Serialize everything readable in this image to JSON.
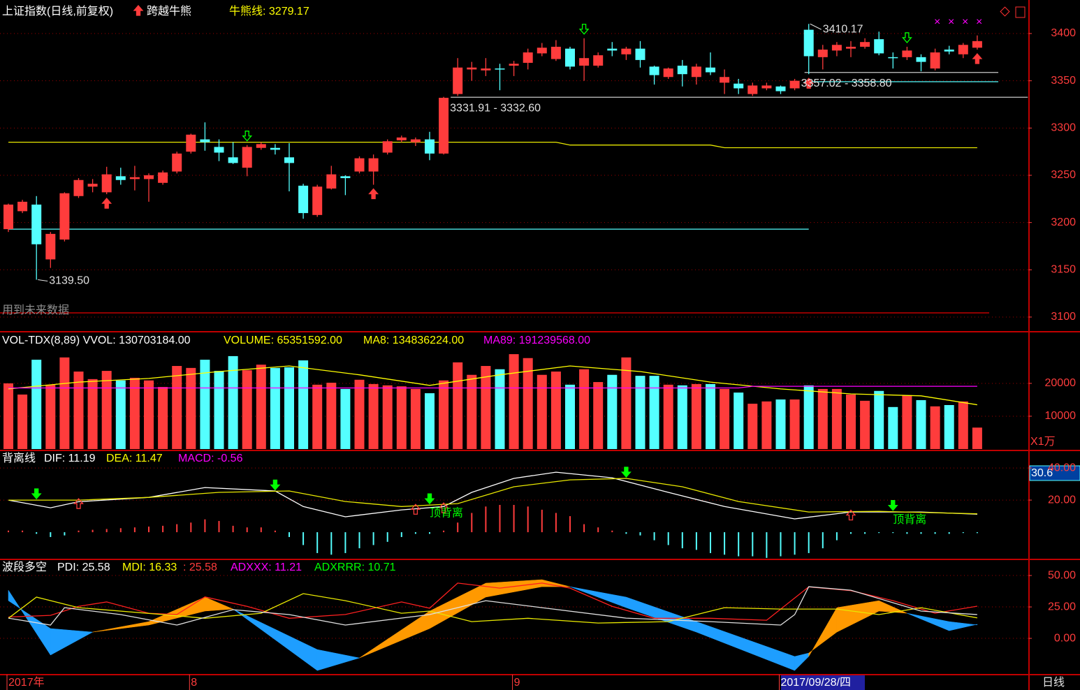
{
  "chart_data": [
    {
      "type": "candlestick",
      "legend": [
        {
          "label": "上证指数(日线,前复权)",
          "color": "#ffffff"
        },
        {
          "label": "跨越牛熊",
          "color": "#ffffff"
        },
        {
          "label": "牛熊线: 3279.17",
          "color": "#ffff00"
        }
      ],
      "footnote": "用到未来数据",
      "categories": [
        "2017年",
        null,
        null,
        null,
        null,
        null,
        null,
        null,
        null,
        null,
        null,
        null,
        null,
        "8",
        null,
        null,
        null,
        null,
        null,
        null,
        null,
        null,
        null,
        null,
        null,
        null,
        null,
        null,
        null,
        null,
        null,
        null,
        null,
        null,
        null,
        null,
        "9",
        null,
        null,
        null,
        null,
        null,
        null,
        null,
        null,
        null,
        null,
        null,
        null,
        null,
        null,
        null,
        null,
        null,
        null,
        "2017/09/28/四",
        null,
        null,
        null,
        null,
        null,
        null,
        null,
        null,
        null,
        null,
        null,
        null,
        null,
        null
      ],
      "open": [
        3193,
        3212,
        3219,
        3161,
        3182,
        3228,
        3238,
        3232,
        3249,
        3246,
        3246,
        3242,
        3254,
        3275,
        3288,
        3280,
        3269,
        3258,
        3279,
        3279,
        3269,
        3239,
        3208,
        3236,
        3249,
        3254,
        3254,
        3274,
        3287,
        3285,
        3288,
        3273,
        3336,
        3362,
        3361,
        3363,
        3366,
        3369,
        3379,
        3373,
        3384,
        3366,
        3366,
        3384,
        3378,
        3384,
        3365,
        3354,
        3366,
        3354,
        3364,
        3348,
        3347,
        3336,
        3342,
        3344,
        3342,
        3404,
        3375,
        3382,
        3384,
        3386,
        3394,
        3375,
        3375,
        3375,
        3363,
        3383,
        3378,
        3385
      ],
      "high": [
        3220,
        3224,
        3228,
        3190,
        3232,
        3247,
        3246,
        3259,
        3258,
        3260,
        3252,
        3255,
        3275,
        3294,
        3306,
        3288,
        3285,
        3282,
        3285,
        3283,
        3284,
        3241,
        3240,
        3260,
        3250,
        3270,
        3272,
        3288,
        3292,
        3290,
        3296,
        3333,
        3374,
        3370,
        3374,
        3368,
        3371,
        3384,
        3390,
        3393,
        3386,
        3395,
        3380,
        3391,
        3386,
        3392,
        3366,
        3364,
        3372,
        3368,
        3380,
        3362,
        3352,
        3348,
        3348,
        3345,
        3352,
        3410.17,
        3388,
        3391,
        3392,
        3395,
        3402,
        3380,
        3386,
        3378,
        3384,
        3387,
        3390,
        3398
      ],
      "low": [
        3190,
        3210,
        3139.5,
        3152,
        3180,
        3226,
        3232,
        3230,
        3240,
        3234,
        3222,
        3240,
        3252,
        3273,
        3276,
        3265,
        3262,
        3249,
        3277,
        3272,
        3233,
        3204,
        3206,
        3235,
        3229,
        3252,
        3240,
        3272,
        3285,
        3281,
        3266,
        3272,
        3334,
        3350,
        3355,
        3340,
        3355,
        3362,
        3376,
        3371,
        3362,
        3350,
        3364,
        3376,
        3372,
        3364,
        3346,
        3352,
        3344,
        3346,
        3356,
        3336,
        3336,
        3334,
        3340,
        3336,
        3340,
        3357,
        3362,
        3376,
        3375,
        3384,
        3377,
        3363,
        3372,
        3360,
        3361,
        3378,
        3374,
        3383
      ],
      "close": [
        3219,
        3222,
        3177,
        3188,
        3231,
        3245,
        3241,
        3251,
        3245,
        3248,
        3250,
        3253,
        3273,
        3293,
        3285,
        3274,
        3263,
        3280,
        3283,
        3277,
        3263,
        3210,
        3238,
        3251,
        3247,
        3268,
        3268,
        3286,
        3290,
        3288,
        3273,
        3332,
        3364,
        3364,
        3363,
        3362,
        3368,
        3380,
        3385,
        3386,
        3365,
        3374,
        3377,
        3382,
        3384,
        3372,
        3356,
        3363,
        3357,
        3365,
        3359,
        3354,
        3342,
        3345,
        3345,
        3339,
        3350,
        3376,
        3383,
        3388,
        3386,
        3391,
        3379,
        3374,
        3382,
        3370,
        3380,
        3381,
        3388,
        3392
      ],
      "up_color": "#ff3c3c",
      "down_color": "#54ffff",
      "ylim": [
        3085.2,
        3434
      ],
      "yticks": [
        3100,
        3150,
        3200,
        3250,
        3300,
        3350,
        3400
      ],
      "grid": true,
      "series": [
        {
          "color": "#e8e800",
          "x": [
            0,
            39,
            40,
            50,
            51,
            69
          ],
          "values": [
            3285,
            3285,
            3282,
            3282,
            3279.17,
            3279.17
          ]
        }
      ],
      "levels": [
        {
          "value": 3193,
          "color": "#54ffff",
          "x": [
            0,
            57
          ]
        },
        {
          "value": 3332.6,
          "color": "#c8c8c8",
          "x": [
            31.5,
            72.6
          ]
        },
        {
          "value": 3358.8,
          "color": "#c8c8c8",
          "x": [
            56.7,
            70.5
          ]
        },
        {
          "value": 3349,
          "color": "#54ffff",
          "x": [
            56.7,
            70.5
          ]
        }
      ],
      "annotations": [
        {
          "label": "3139.50",
          "x": 2,
          "value": 3139.5
        },
        {
          "label": "3410.17",
          "x": 57,
          "value": 3410.17
        },
        {
          "label": "3331.91 - 3332.60",
          "x": 31.7,
          "value": 3332.6
        },
        {
          "label": "3357.02 - 3358.80",
          "x": 56.7,
          "value": 3358.8
        }
      ],
      "up_arrows": [
        7,
        26,
        57,
        69
      ],
      "down_arrows": [
        17,
        41,
        64
      ]
    },
    {
      "type": "bar",
      "legend": [
        {
          "label": "VOL-TDX(8,89) VVOL: 130703184.00",
          "color": "#ffffff"
        },
        {
          "label": "VOLUME: 65351592.00",
          "color": "#ffff00"
        },
        {
          "label": "MA8: 134836224.00",
          "color": "#ffff00"
        },
        {
          "label": "MA89: 191239568.00",
          "color": "#ff00ff"
        }
      ],
      "unit_label": "X1万",
      "values": [
        20000,
        16600,
        27200,
        19600,
        27900,
        23600,
        21300,
        23800,
        20900,
        21700,
        20900,
        18900,
        25300,
        24700,
        27200,
        23800,
        28300,
        24000,
        25700,
        24700,
        24900,
        27000,
        19600,
        20200,
        18300,
        21100,
        19800,
        19400,
        19100,
        18300,
        17000,
        20900,
        26400,
        22600,
        25300,
        24300,
        28900,
        27700,
        22600,
        23600,
        19600,
        24300,
        20400,
        22600,
        27900,
        22300,
        22300,
        19600,
        19400,
        19800,
        19800,
        18300,
        17200,
        13800,
        14500,
        15100,
        15100,
        19400,
        18300,
        18300,
        16600,
        14700,
        17700,
        12800,
        16400,
        14900,
        13000,
        13400,
        14500,
        6535
      ],
      "ylim": [
        0,
        35300
      ],
      "yticks": [
        10000,
        20000
      ],
      "grid": true,
      "series": [
        {
          "color": "#ffff00",
          "x": [
            0,
            5,
            10,
            15,
            20,
            25,
            30,
            35,
            40,
            45,
            50,
            55,
            60,
            65,
            69
          ],
          "values": [
            18300,
            20400,
            21500,
            23600,
            25300,
            22600,
            19400,
            22600,
            25300,
            23600,
            20400,
            18300,
            16800,
            16200,
            13484
          ]
        },
        {
          "color": "#ff00ff",
          "x": [
            0,
            52,
            53,
            69
          ],
          "values": [
            18600,
            18600,
            19124,
            19124
          ]
        }
      ]
    },
    {
      "type": "macd",
      "legend": [
        {
          "label": "背离线",
          "color": "#ffffff"
        },
        {
          "label": "DIF: 11.19",
          "color": "#ffffff"
        },
        {
          "label": "DEA: 11.47",
          "color": "#ffff00"
        },
        {
          "label": "MACD: -0.56",
          "color": "#ff00ff"
        }
      ],
      "cursor_value": 30.6,
      "values": [
        1,
        1,
        -1,
        -3,
        -2,
        1,
        1.5,
        2,
        2.5,
        3,
        3.5,
        4,
        5,
        6,
        8,
        7,
        4,
        3,
        3,
        1,
        -3,
        -8,
        -13,
        -14,
        -13,
        -10,
        -8,
        -6,
        -3,
        -1,
        -1,
        1,
        6,
        12,
        16,
        17,
        17,
        16,
        14,
        12,
        10,
        5,
        3,
        1,
        -1,
        -2,
        -5,
        -8,
        -10,
        -11,
        -13,
        -14,
        -15,
        -15,
        -16,
        -15,
        -14,
        -13,
        -10,
        -5,
        -1,
        -1,
        -0.5,
        -0.5,
        -1,
        -1,
        -1,
        -1,
        -0.5,
        -0.56
      ],
      "up_color": "#ff3c3c",
      "down_color": "#54ffff",
      "ylim": [
        -16.5,
        49.6
      ],
      "yticks": [
        {
          "value": 20,
          "label": "20.00"
        },
        {
          "value": 40,
          "label": "40.00"
        }
      ],
      "grid": true,
      "series": [
        {
          "color": "#ffffff",
          "x": [
            0,
            3,
            5,
            10,
            14,
            19,
            21,
            24,
            28,
            31,
            33,
            36,
            39,
            43,
            47,
            51,
            56,
            60,
            65,
            69
          ],
          "values": [
            20,
            15.2,
            19,
            21.7,
            27.8,
            25.7,
            16,
            9.6,
            13.9,
            16,
            24.8,
            33.5,
            37.4,
            33.9,
            24.8,
            16,
            8.3,
            12.6,
            12.6,
            11.19
          ]
        },
        {
          "color": "#e8e800",
          "x": [
            0,
            5,
            10,
            15,
            20,
            24,
            28,
            32,
            36,
            40,
            44,
            48,
            52,
            57,
            62,
            69
          ],
          "values": [
            20,
            20,
            21.7,
            24.8,
            25.7,
            19.1,
            16,
            17.8,
            28.3,
            32.6,
            33.5,
            28.3,
            19.1,
            12.6,
            13,
            11.47
          ]
        }
      ],
      "down_arrows": [
        2,
        19,
        30,
        44,
        63
      ],
      "up_arrows": [
        5,
        29,
        31,
        60
      ],
      "divergence_labels": [
        {
          "label": "顶背离",
          "x": 30
        },
        {
          "label": "顶背离",
          "x": 63
        }
      ]
    },
    {
      "type": "dmi",
      "legend": [
        {
          "label": "波段多空",
          "color": "#ffffff"
        },
        {
          "label": "PDI: 25.58",
          "color": "#ffffff"
        },
        {
          "label": "MDI: 16.33",
          "color": "#ffff00"
        },
        {
          "label": ": 25.58",
          "color": "#ff3c3c"
        },
        {
          "label": "ADXXX: 11.21",
          "color": "#ff00ff"
        },
        {
          "label": "ADXRRR: 10.71",
          "color": "#00ff00"
        }
      ],
      "period_label": "日线",
      "ylim": [
        -28.3,
        61.7
      ],
      "yticks": [
        {
          "value": 0,
          "label": "0.00"
        },
        {
          "value": 25,
          "label": "25.00"
        },
        {
          "value": 50,
          "label": "50.00"
        }
      ],
      "grid": true,
      "series": [
        {
          "color": "#ff2020",
          "x": [
            0,
            3,
            5,
            7,
            10,
            12,
            14,
            17,
            20,
            24,
            28,
            30,
            32,
            35,
            38,
            40,
            43,
            46,
            50,
            54,
            57,
            60,
            63,
            66,
            69
          ],
          "values": [
            17,
            18.3,
            25.5,
            29,
            20,
            19,
            33,
            25.5,
            16,
            19,
            29,
            24,
            44,
            40,
            44,
            40,
            25.5,
            16,
            16,
            14.4,
            41,
            38,
            30,
            20,
            25.58
          ]
        },
        {
          "color": "#e8e800",
          "x": [
            0,
            2,
            5,
            11,
            14,
            18,
            21,
            24,
            28,
            30,
            33,
            37,
            42,
            47,
            51,
            55,
            59,
            62,
            65,
            69
          ],
          "values": [
            16,
            32.8,
            24.4,
            18.9,
            16,
            20,
            35.6,
            30,
            20,
            21.7,
            13.3,
            16,
            12.2,
            13.3,
            24.4,
            23.3,
            23.3,
            18.9,
            24.4,
            16.33
          ]
        },
        {
          "color": "#e0e0e0",
          "x": [
            0,
            3,
            4,
            8,
            12,
            16,
            20,
            24,
            30,
            34,
            38,
            44,
            50,
            55,
            56,
            57,
            60,
            65,
            69
          ],
          "values": [
            16.1,
            10.6,
            24.4,
            18.9,
            10.6,
            22.8,
            18.9,
            10.6,
            18.9,
            30,
            24.4,
            16.1,
            13.3,
            10.6,
            18.9,
            41.1,
            38.3,
            21.7,
            18.9
          ]
        }
      ],
      "ribbon": {
        "x": [
          0,
          3,
          6,
          10,
          14,
          16,
          22,
          25,
          30,
          34,
          38,
          40,
          44,
          49,
          56,
          57,
          59,
          62,
          64,
          67,
          69
        ],
        "a": [
          38.3,
          -13.3,
          5,
          13.3,
          32.8,
          23.3,
          -25.6,
          -15.6,
          21.7,
          43.9,
          46.7,
          41.1,
          24.4,
          5,
          -25.6,
          -14.4,
          24.4,
          30,
          20,
          6.1,
          11.21
        ],
        "b": [
          30,
          7.8,
          5,
          10.6,
          21.7,
          23.3,
          -8.9,
          -15.6,
          7.8,
          32.8,
          41.1,
          41.1,
          32.8,
          13.3,
          -14.4,
          -11.7,
          5,
          21.7,
          20,
          13.3,
          10.71
        ],
        "rising_color": "#ff9900",
        "falling_color": "#1e9eff"
      }
    }
  ]
}
